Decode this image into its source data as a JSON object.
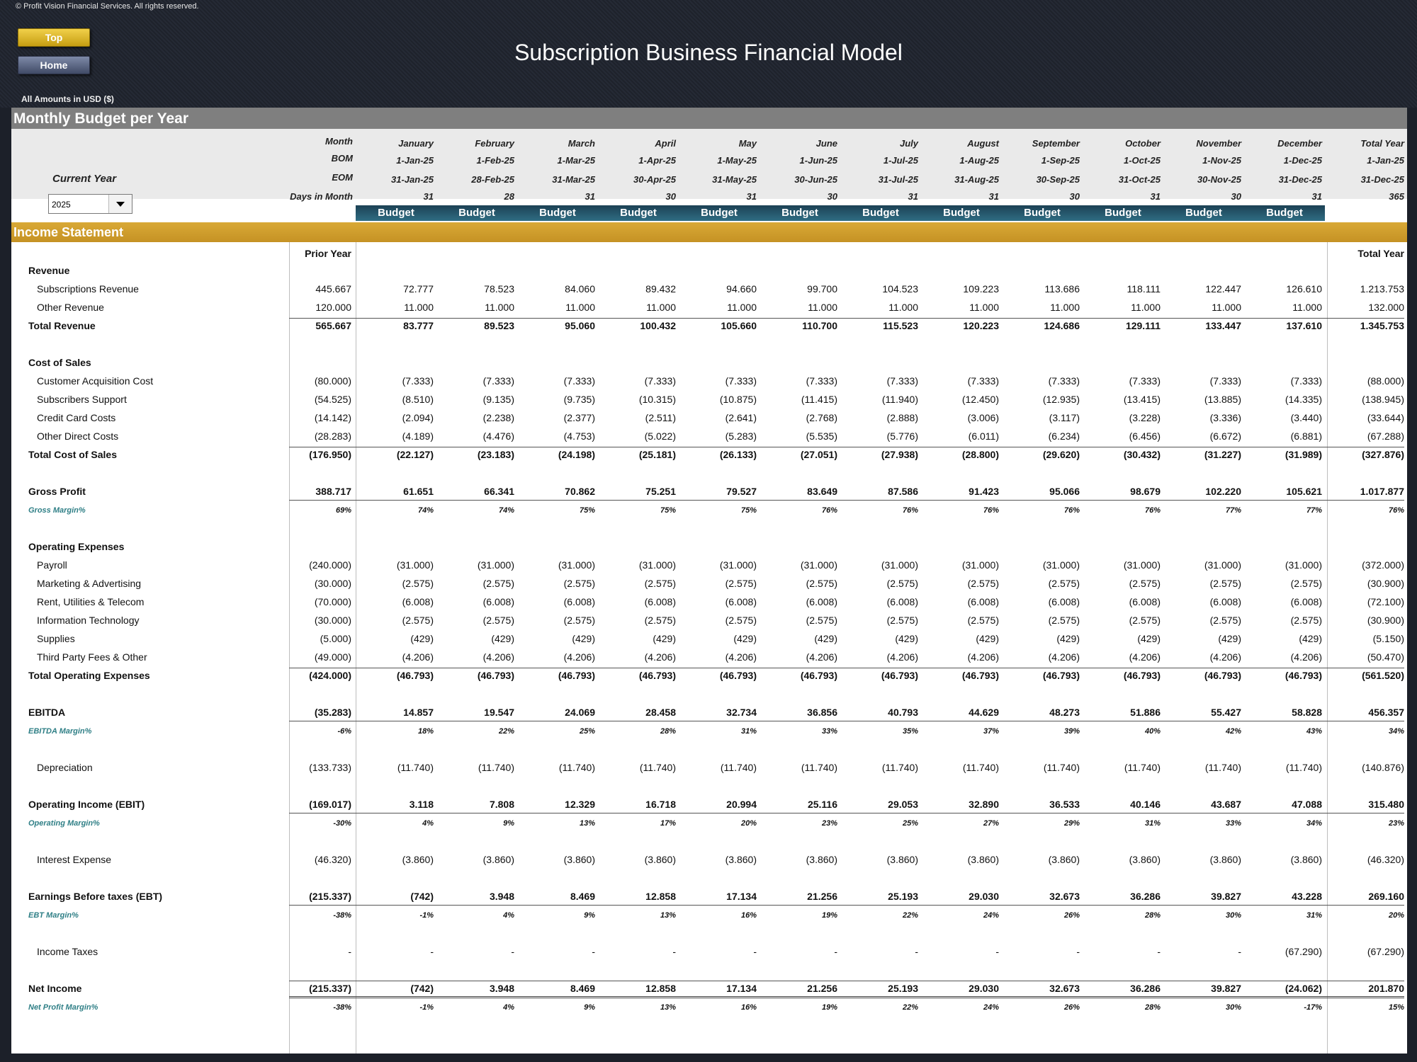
{
  "header": {
    "copyright": "© Profit Vision Financial Services. All rights reserved.",
    "top_button": "Top",
    "home_button": "Home",
    "title": "Subscription Business Financial Model",
    "amounts_label": "All Amounts in  USD ($)"
  },
  "section_title": "Monthly Budget per Year",
  "current_year_label": "Current Year",
  "current_year_value": "2025",
  "header_labels": {
    "month": "Month",
    "bom": "BOM",
    "eom": "EOM",
    "days": "Days in Month"
  },
  "months": [
    {
      "name": "January",
      "bom": "1-Jan-25",
      "eom": "31-Jan-25",
      "days": "31",
      "budget": "Budget"
    },
    {
      "name": "February",
      "bom": "1-Feb-25",
      "eom": "28-Feb-25",
      "days": "28",
      "budget": "Budget"
    },
    {
      "name": "March",
      "bom": "1-Mar-25",
      "eom": "31-Mar-25",
      "days": "31",
      "budget": "Budget"
    },
    {
      "name": "April",
      "bom": "1-Apr-25",
      "eom": "30-Apr-25",
      "days": "30",
      "budget": "Budget"
    },
    {
      "name": "May",
      "bom": "1-May-25",
      "eom": "31-May-25",
      "days": "31",
      "budget": "Budget"
    },
    {
      "name": "June",
      "bom": "1-Jun-25",
      "eom": "30-Jun-25",
      "days": "30",
      "budget": "Budget"
    },
    {
      "name": "July",
      "bom": "1-Jul-25",
      "eom": "31-Jul-25",
      "days": "31",
      "budget": "Budget"
    },
    {
      "name": "August",
      "bom": "1-Aug-25",
      "eom": "31-Aug-25",
      "days": "31",
      "budget": "Budget"
    },
    {
      "name": "September",
      "bom": "1-Sep-25",
      "eom": "30-Sep-25",
      "days": "30",
      "budget": "Budget"
    },
    {
      "name": "October",
      "bom": "1-Oct-25",
      "eom": "31-Oct-25",
      "days": "31",
      "budget": "Budget"
    },
    {
      "name": "November",
      "bom": "1-Nov-25",
      "eom": "30-Nov-25",
      "days": "30",
      "budget": "Budget"
    },
    {
      "name": "December",
      "bom": "1-Dec-25",
      "eom": "31-Dec-25",
      "days": "31",
      "budget": "Budget"
    }
  ],
  "total_year_header": {
    "name": "Total Year",
    "bom": "1-Jan-25",
    "eom": "31-Dec-25",
    "days": "365"
  },
  "income_statement_title": "Income Statement",
  "prior_year_label": "Prior Year",
  "total_year_label": "Total Year",
  "rows": [
    {
      "kind": "header",
      "label": "Revenue"
    },
    {
      "kind": "item",
      "label": "Subscriptions Revenue",
      "prior": "445.667",
      "values": [
        "72.777",
        "78.523",
        "84.060",
        "89.432",
        "94.660",
        "99.700",
        "104.523",
        "109.223",
        "113.686",
        "118.111",
        "122.447",
        "126.610"
      ],
      "total": "1.213.753"
    },
    {
      "kind": "item",
      "label": "Other Revenue",
      "prior": "120.000",
      "values": [
        "11.000",
        "11.000",
        "11.000",
        "11.000",
        "11.000",
        "11.000",
        "11.000",
        "11.000",
        "11.000",
        "11.000",
        "11.000",
        "11.000"
      ],
      "total": "132.000"
    },
    {
      "kind": "total",
      "label": "Total Revenue",
      "prior": "565.667",
      "values": [
        "83.777",
        "89.523",
        "95.060",
        "100.432",
        "105.660",
        "110.700",
        "115.523",
        "120.223",
        "124.686",
        "129.111",
        "133.447",
        "137.610"
      ],
      "total": "1.345.753"
    },
    {
      "kind": "blank"
    },
    {
      "kind": "header",
      "label": "Cost of Sales"
    },
    {
      "kind": "item",
      "label": "Customer Acquisition Cost",
      "prior": "(80.000)",
      "values": [
        "(7.333)",
        "(7.333)",
        "(7.333)",
        "(7.333)",
        "(7.333)",
        "(7.333)",
        "(7.333)",
        "(7.333)",
        "(7.333)",
        "(7.333)",
        "(7.333)",
        "(7.333)"
      ],
      "total": "(88.000)"
    },
    {
      "kind": "item",
      "label": "Subscribers Support",
      "prior": "(54.525)",
      "values": [
        "(8.510)",
        "(9.135)",
        "(9.735)",
        "(10.315)",
        "(10.875)",
        "(11.415)",
        "(11.940)",
        "(12.450)",
        "(12.935)",
        "(13.415)",
        "(13.885)",
        "(14.335)"
      ],
      "total": "(138.945)"
    },
    {
      "kind": "item",
      "label": "Credit Card Costs",
      "prior": "(14.142)",
      "values": [
        "(2.094)",
        "(2.238)",
        "(2.377)",
        "(2.511)",
        "(2.641)",
        "(2.768)",
        "(2.888)",
        "(3.006)",
        "(3.117)",
        "(3.228)",
        "(3.336)",
        "(3.440)"
      ],
      "total": "(33.644)"
    },
    {
      "kind": "item",
      "label": "Other Direct Costs",
      "prior": "(28.283)",
      "values": [
        "(4.189)",
        "(4.476)",
        "(4.753)",
        "(5.022)",
        "(5.283)",
        "(5.535)",
        "(5.776)",
        "(6.011)",
        "(6.234)",
        "(6.456)",
        "(6.672)",
        "(6.881)"
      ],
      "total": "(67.288)"
    },
    {
      "kind": "total",
      "label": "Total Cost of Sales",
      "prior": "(176.950)",
      "values": [
        "(22.127)",
        "(23.183)",
        "(24.198)",
        "(25.181)",
        "(26.133)",
        "(27.051)",
        "(27.938)",
        "(28.800)",
        "(29.620)",
        "(30.432)",
        "(31.227)",
        "(31.989)"
      ],
      "total": "(327.876)"
    },
    {
      "kind": "blank"
    },
    {
      "kind": "key",
      "label": "Gross Profit",
      "prior": "388.717",
      "values": [
        "61.651",
        "66.341",
        "70.862",
        "75.251",
        "79.527",
        "83.649",
        "87.586",
        "91.423",
        "95.066",
        "98.679",
        "102.220",
        "105.621"
      ],
      "total": "1.017.877"
    },
    {
      "kind": "margin",
      "label": "Gross Margin%",
      "prior": "69%",
      "values": [
        "74%",
        "74%",
        "75%",
        "75%",
        "75%",
        "76%",
        "76%",
        "76%",
        "76%",
        "76%",
        "77%",
        "77%"
      ],
      "total": "76%"
    },
    {
      "kind": "blank"
    },
    {
      "kind": "header",
      "label": "Operating Expenses"
    },
    {
      "kind": "item",
      "label": "Payroll",
      "prior": "(240.000)",
      "values": [
        "(31.000)",
        "(31.000)",
        "(31.000)",
        "(31.000)",
        "(31.000)",
        "(31.000)",
        "(31.000)",
        "(31.000)",
        "(31.000)",
        "(31.000)",
        "(31.000)",
        "(31.000)"
      ],
      "total": "(372.000)"
    },
    {
      "kind": "item",
      "label": "Marketing & Advertising",
      "prior": "(30.000)",
      "values": [
        "(2.575)",
        "(2.575)",
        "(2.575)",
        "(2.575)",
        "(2.575)",
        "(2.575)",
        "(2.575)",
        "(2.575)",
        "(2.575)",
        "(2.575)",
        "(2.575)",
        "(2.575)"
      ],
      "total": "(30.900)"
    },
    {
      "kind": "item",
      "label": "Rent, Utilities & Telecom",
      "prior": "(70.000)",
      "values": [
        "(6.008)",
        "(6.008)",
        "(6.008)",
        "(6.008)",
        "(6.008)",
        "(6.008)",
        "(6.008)",
        "(6.008)",
        "(6.008)",
        "(6.008)",
        "(6.008)",
        "(6.008)"
      ],
      "total": "(72.100)"
    },
    {
      "kind": "item",
      "label": "Information Technology",
      "prior": "(30.000)",
      "values": [
        "(2.575)",
        "(2.575)",
        "(2.575)",
        "(2.575)",
        "(2.575)",
        "(2.575)",
        "(2.575)",
        "(2.575)",
        "(2.575)",
        "(2.575)",
        "(2.575)",
        "(2.575)"
      ],
      "total": "(30.900)"
    },
    {
      "kind": "item",
      "label": "Supplies",
      "prior": "(5.000)",
      "values": [
        "(429)",
        "(429)",
        "(429)",
        "(429)",
        "(429)",
        "(429)",
        "(429)",
        "(429)",
        "(429)",
        "(429)",
        "(429)",
        "(429)"
      ],
      "total": "(5.150)"
    },
    {
      "kind": "item",
      "label": "Third Party Fees & Other",
      "prior": "(49.000)",
      "values": [
        "(4.206)",
        "(4.206)",
        "(4.206)",
        "(4.206)",
        "(4.206)",
        "(4.206)",
        "(4.206)",
        "(4.206)",
        "(4.206)",
        "(4.206)",
        "(4.206)",
        "(4.206)"
      ],
      "total": "(50.470)"
    },
    {
      "kind": "total",
      "label": "Total Operating Expenses",
      "prior": "(424.000)",
      "values": [
        "(46.793)",
        "(46.793)",
        "(46.793)",
        "(46.793)",
        "(46.793)",
        "(46.793)",
        "(46.793)",
        "(46.793)",
        "(46.793)",
        "(46.793)",
        "(46.793)",
        "(46.793)"
      ],
      "total": "(561.520)"
    },
    {
      "kind": "blank"
    },
    {
      "kind": "key",
      "label": "EBITDA",
      "prior": "(35.283)",
      "values": [
        "14.857",
        "19.547",
        "24.069",
        "28.458",
        "32.734",
        "36.856",
        "40.793",
        "44.629",
        "48.273",
        "51.886",
        "55.427",
        "58.828"
      ],
      "total": "456.357"
    },
    {
      "kind": "margin",
      "label": "EBITDA Margin%",
      "prior": "-6%",
      "values": [
        "18%",
        "22%",
        "25%",
        "28%",
        "31%",
        "33%",
        "35%",
        "37%",
        "39%",
        "40%",
        "42%",
        "43%"
      ],
      "total": "34%"
    },
    {
      "kind": "blank"
    },
    {
      "kind": "item",
      "label": "Depreciation",
      "prior": "(133.733)",
      "values": [
        "(11.740)",
        "(11.740)",
        "(11.740)",
        "(11.740)",
        "(11.740)",
        "(11.740)",
        "(11.740)",
        "(11.740)",
        "(11.740)",
        "(11.740)",
        "(11.740)",
        "(11.740)"
      ],
      "total": "(140.876)"
    },
    {
      "kind": "blank"
    },
    {
      "kind": "key",
      "label": "Operating Income (EBIT)",
      "prior": "(169.017)",
      "values": [
        "3.118",
        "7.808",
        "12.329",
        "16.718",
        "20.994",
        "25.116",
        "29.053",
        "32.890",
        "36.533",
        "40.146",
        "43.687",
        "47.088"
      ],
      "total": "315.480"
    },
    {
      "kind": "margin",
      "label": "Operating Margin%",
      "prior": "-30%",
      "values": [
        "4%",
        "9%",
        "13%",
        "17%",
        "20%",
        "23%",
        "25%",
        "27%",
        "29%",
        "31%",
        "33%",
        "34%"
      ],
      "total": "23%"
    },
    {
      "kind": "blank"
    },
    {
      "kind": "item",
      "label": "Interest Expense",
      "prior": "(46.320)",
      "values": [
        "(3.860)",
        "(3.860)",
        "(3.860)",
        "(3.860)",
        "(3.860)",
        "(3.860)",
        "(3.860)",
        "(3.860)",
        "(3.860)",
        "(3.860)",
        "(3.860)",
        "(3.860)"
      ],
      "total": "(46.320)"
    },
    {
      "kind": "blank"
    },
    {
      "kind": "key",
      "label": "Earnings Before taxes (EBT)",
      "prior": "(215.337)",
      "values": [
        "(742)",
        "3.948",
        "8.469",
        "12.858",
        "17.134",
        "21.256",
        "25.193",
        "29.030",
        "32.673",
        "36.286",
        "39.827",
        "43.228"
      ],
      "total": "269.160"
    },
    {
      "kind": "margin",
      "label": "EBT Margin%",
      "prior": "-38%",
      "values": [
        "-1%",
        "4%",
        "9%",
        "13%",
        "16%",
        "19%",
        "22%",
        "24%",
        "26%",
        "28%",
        "30%",
        "31%"
      ],
      "total": "20%"
    },
    {
      "kind": "blank"
    },
    {
      "kind": "item",
      "label": "Income Taxes",
      "prior": "-",
      "values": [
        "-",
        "-",
        "-",
        "-",
        "-",
        "-",
        "-",
        "-",
        "-",
        "-",
        "-",
        "(67.290)"
      ],
      "total": "(67.290)"
    },
    {
      "kind": "blank"
    },
    {
      "kind": "net",
      "label": "Net Income",
      "prior": "(215.337)",
      "values": [
        "(742)",
        "3.948",
        "8.469",
        "12.858",
        "17.134",
        "21.256",
        "25.193",
        "29.030",
        "32.673",
        "36.286",
        "39.827",
        "(24.062)"
      ],
      "total": "201.870"
    },
    {
      "kind": "margin",
      "label": "Net Profit Margin%",
      "prior": "-38%",
      "values": [
        "-1%",
        "4%",
        "9%",
        "13%",
        "16%",
        "19%",
        "22%",
        "24%",
        "26%",
        "28%",
        "30%",
        "-17%"
      ],
      "total": "15%"
    }
  ],
  "colors": {
    "gold": "#c8952a",
    "teal_budget": "#2a6478",
    "margin_text": "#2f7f86",
    "gray_bar": "#7f7f7f"
  }
}
